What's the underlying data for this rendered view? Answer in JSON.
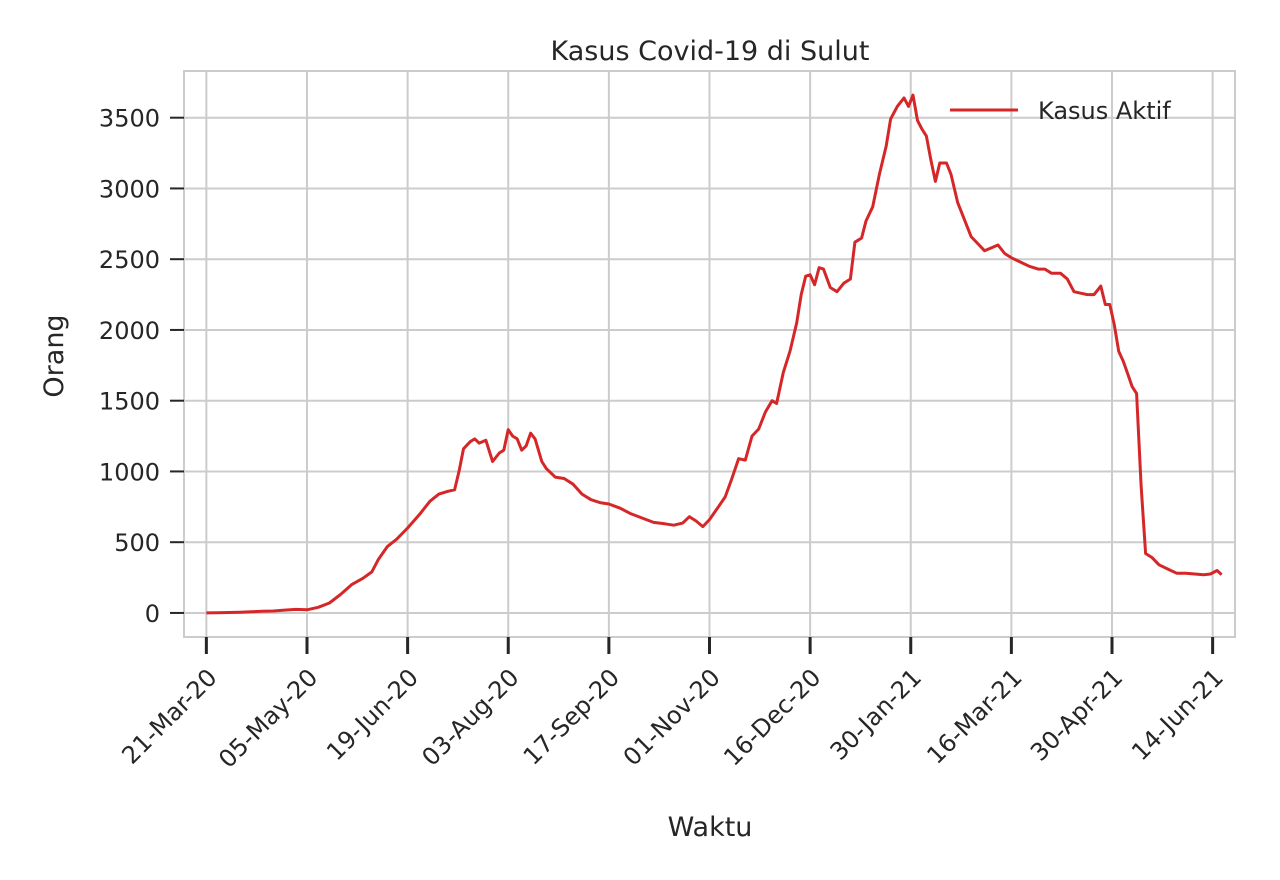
{
  "chart_data": {
    "type": "line",
    "title": "Kasus Covid-19 di Sulut",
    "xlabel": "Waktu",
    "ylabel": "Orang",
    "x_start": "2020-03-21",
    "xlim": [
      "2020-03-11",
      "2021-06-24"
    ],
    "ylim": [
      -170,
      3830
    ],
    "grid": true,
    "legend_position": "top-right",
    "line_color": "#d62728",
    "xticks": [
      {
        "date": "2020-03-21",
        "label": "21-Mar-20"
      },
      {
        "date": "2020-05-05",
        "label": "05-May-20"
      },
      {
        "date": "2020-06-19",
        "label": "19-Jun-20"
      },
      {
        "date": "2020-08-03",
        "label": "03-Aug-20"
      },
      {
        "date": "2020-09-17",
        "label": "17-Sep-20"
      },
      {
        "date": "2020-11-01",
        "label": "01-Nov-20"
      },
      {
        "date": "2020-12-16",
        "label": "16-Dec-20"
      },
      {
        "date": "2021-01-30",
        "label": "30-Jan-21"
      },
      {
        "date": "2021-03-16",
        "label": "16-Mar-21"
      },
      {
        "date": "2021-04-30",
        "label": "30-Apr-21"
      },
      {
        "date": "2021-06-14",
        "label": "14-Jun-21"
      }
    ],
    "yticks": [
      0,
      500,
      1000,
      1500,
      2000,
      2500,
      3000,
      3500
    ],
    "series": [
      {
        "name": "Kasus Aktif",
        "points": [
          [
            "2020-03-21",
            0
          ],
          [
            "2020-03-26",
            2
          ],
          [
            "2020-03-31",
            3
          ],
          [
            "2020-04-05",
            5
          ],
          [
            "2020-04-10",
            8
          ],
          [
            "2020-04-15",
            12
          ],
          [
            "2020-04-20",
            14
          ],
          [
            "2020-04-25",
            20
          ],
          [
            "2020-04-30",
            25
          ],
          [
            "2020-05-05",
            22
          ],
          [
            "2020-05-10",
            40
          ],
          [
            "2020-05-15",
            70
          ],
          [
            "2020-05-20",
            130
          ],
          [
            "2020-05-25",
            200
          ],
          [
            "2020-05-30",
            245
          ],
          [
            "2020-06-03",
            290
          ],
          [
            "2020-06-06",
            380
          ],
          [
            "2020-06-10",
            470
          ],
          [
            "2020-06-14",
            520
          ],
          [
            "2020-06-19",
            600
          ],
          [
            "2020-06-24",
            690
          ],
          [
            "2020-06-29",
            790
          ],
          [
            "2020-07-03",
            840
          ],
          [
            "2020-07-07",
            860
          ],
          [
            "2020-07-10",
            870
          ],
          [
            "2020-07-12",
            1000
          ],
          [
            "2020-07-14",
            1160
          ],
          [
            "2020-07-17",
            1210
          ],
          [
            "2020-07-19",
            1230
          ],
          [
            "2020-07-21",
            1200
          ],
          [
            "2020-07-24",
            1220
          ],
          [
            "2020-07-27",
            1070
          ],
          [
            "2020-07-30",
            1130
          ],
          [
            "2020-08-01",
            1150
          ],
          [
            "2020-08-03",
            1295
          ],
          [
            "2020-08-05",
            1250
          ],
          [
            "2020-08-07",
            1230
          ],
          [
            "2020-08-09",
            1150
          ],
          [
            "2020-08-11",
            1180
          ],
          [
            "2020-08-13",
            1270
          ],
          [
            "2020-08-15",
            1230
          ],
          [
            "2020-08-18",
            1070
          ],
          [
            "2020-08-20",
            1020
          ],
          [
            "2020-08-24",
            960
          ],
          [
            "2020-08-28",
            950
          ],
          [
            "2020-09-01",
            910
          ],
          [
            "2020-09-05",
            840
          ],
          [
            "2020-09-09",
            800
          ],
          [
            "2020-09-13",
            780
          ],
          [
            "2020-09-17",
            770
          ],
          [
            "2020-09-22",
            740
          ],
          [
            "2020-09-27",
            700
          ],
          [
            "2020-10-02",
            670
          ],
          [
            "2020-10-07",
            640
          ],
          [
            "2020-10-12",
            630
          ],
          [
            "2020-10-16",
            620
          ],
          [
            "2020-10-20",
            635
          ],
          [
            "2020-10-23",
            680
          ],
          [
            "2020-10-26",
            650
          ],
          [
            "2020-10-29",
            610
          ],
          [
            "2020-11-01",
            660
          ],
          [
            "2020-11-05",
            750
          ],
          [
            "2020-11-08",
            820
          ],
          [
            "2020-11-11",
            950
          ],
          [
            "2020-11-14",
            1090
          ],
          [
            "2020-11-17",
            1080
          ],
          [
            "2020-11-20",
            1250
          ],
          [
            "2020-11-23",
            1300
          ],
          [
            "2020-11-26",
            1420
          ],
          [
            "2020-11-29",
            1500
          ],
          [
            "2020-12-01",
            1480
          ],
          [
            "2020-12-04",
            1700
          ],
          [
            "2020-12-07",
            1850
          ],
          [
            "2020-12-10",
            2050
          ],
          [
            "2020-12-12",
            2250
          ],
          [
            "2020-12-14",
            2380
          ],
          [
            "2020-12-16",
            2390
          ],
          [
            "2020-12-18",
            2320
          ],
          [
            "2020-12-20",
            2440
          ],
          [
            "2020-12-22",
            2430
          ],
          [
            "2020-12-25",
            2300
          ],
          [
            "2020-12-28",
            2270
          ],
          [
            "2020-12-31",
            2330
          ],
          [
            "2021-01-03",
            2360
          ],
          [
            "2021-01-05",
            2620
          ],
          [
            "2021-01-08",
            2650
          ],
          [
            "2021-01-10",
            2770
          ],
          [
            "2021-01-13",
            2870
          ],
          [
            "2021-01-16",
            3100
          ],
          [
            "2021-01-19",
            3300
          ],
          [
            "2021-01-21",
            3490
          ],
          [
            "2021-01-24",
            3580
          ],
          [
            "2021-01-27",
            3640
          ],
          [
            "2021-01-29",
            3580
          ],
          [
            "2021-01-31",
            3660
          ],
          [
            "2021-02-02",
            3480
          ],
          [
            "2021-02-04",
            3420
          ],
          [
            "2021-02-06",
            3370
          ],
          [
            "2021-02-08",
            3200
          ],
          [
            "2021-02-10",
            3050
          ],
          [
            "2021-02-12",
            3180
          ],
          [
            "2021-02-15",
            3180
          ],
          [
            "2021-02-17",
            3100
          ],
          [
            "2021-02-20",
            2900
          ],
          [
            "2021-02-23",
            2780
          ],
          [
            "2021-02-26",
            2660
          ],
          [
            "2021-03-01",
            2610
          ],
          [
            "2021-03-04",
            2560
          ],
          [
            "2021-03-07",
            2580
          ],
          [
            "2021-03-10",
            2600
          ],
          [
            "2021-03-13",
            2540
          ],
          [
            "2021-03-16",
            2510
          ],
          [
            "2021-03-20",
            2480
          ],
          [
            "2021-03-24",
            2450
          ],
          [
            "2021-03-28",
            2430
          ],
          [
            "2021-03-31",
            2430
          ],
          [
            "2021-04-03",
            2400
          ],
          [
            "2021-04-07",
            2400
          ],
          [
            "2021-04-10",
            2360
          ],
          [
            "2021-04-13",
            2270
          ],
          [
            "2021-04-16",
            2260
          ],
          [
            "2021-04-19",
            2250
          ],
          [
            "2021-04-22",
            2250
          ],
          [
            "2021-04-25",
            2310
          ],
          [
            "2021-04-27",
            2180
          ],
          [
            "2021-04-29",
            2180
          ],
          [
            "2021-05-01",
            2040
          ],
          [
            "2021-05-03",
            1850
          ],
          [
            "2021-05-05",
            1780
          ],
          [
            "2021-05-07",
            1690
          ],
          [
            "2021-05-09",
            1600
          ],
          [
            "2021-05-11",
            1550
          ],
          [
            "2021-05-13",
            900
          ],
          [
            "2021-05-15",
            420
          ],
          [
            "2021-05-18",
            390
          ],
          [
            "2021-05-21",
            340
          ],
          [
            "2021-05-25",
            310
          ],
          [
            "2021-05-29",
            280
          ],
          [
            "2021-06-02",
            280
          ],
          [
            "2021-06-06",
            275
          ],
          [
            "2021-06-10",
            270
          ],
          [
            "2021-06-13",
            275
          ],
          [
            "2021-06-16",
            300
          ],
          [
            "2021-06-18",
            270
          ]
        ]
      }
    ]
  }
}
